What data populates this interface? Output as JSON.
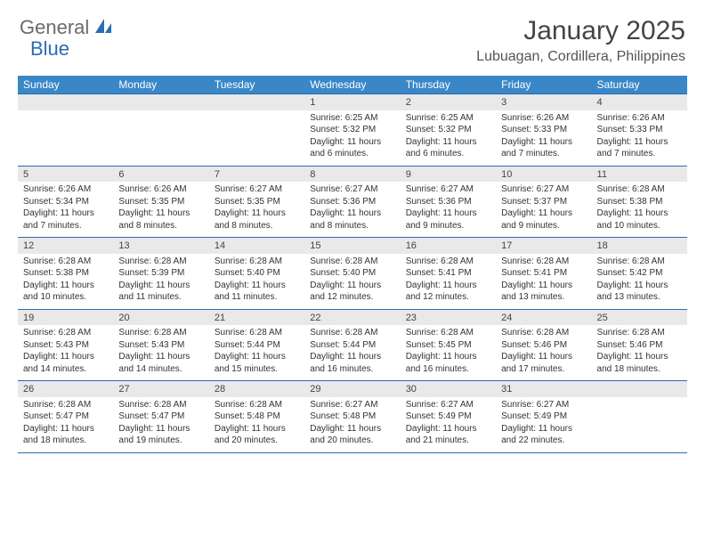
{
  "logo": {
    "text1": "General",
    "text2": "Blue",
    "icon_color": "#2a6db3"
  },
  "title": "January 2025",
  "location": "Lubuagan, Cordillera, Philippines",
  "colors": {
    "header_bg": "#3a87c8",
    "header_text": "#ffffff",
    "daynum_bg": "#e9e9e9",
    "rule": "#2a6db3"
  },
  "weekdays": [
    "Sunday",
    "Monday",
    "Tuesday",
    "Wednesday",
    "Thursday",
    "Friday",
    "Saturday"
  ],
  "weeks": [
    [
      null,
      null,
      null,
      {
        "n": "1",
        "sr": "6:25 AM",
        "ss": "5:32 PM",
        "dh": "11",
        "dm": "6"
      },
      {
        "n": "2",
        "sr": "6:25 AM",
        "ss": "5:32 PM",
        "dh": "11",
        "dm": "6"
      },
      {
        "n": "3",
        "sr": "6:26 AM",
        "ss": "5:33 PM",
        "dh": "11",
        "dm": "7"
      },
      {
        "n": "4",
        "sr": "6:26 AM",
        "ss": "5:33 PM",
        "dh": "11",
        "dm": "7"
      }
    ],
    [
      {
        "n": "5",
        "sr": "6:26 AM",
        "ss": "5:34 PM",
        "dh": "11",
        "dm": "7"
      },
      {
        "n": "6",
        "sr": "6:26 AM",
        "ss": "5:35 PM",
        "dh": "11",
        "dm": "8"
      },
      {
        "n": "7",
        "sr": "6:27 AM",
        "ss": "5:35 PM",
        "dh": "11",
        "dm": "8"
      },
      {
        "n": "8",
        "sr": "6:27 AM",
        "ss": "5:36 PM",
        "dh": "11",
        "dm": "8"
      },
      {
        "n": "9",
        "sr": "6:27 AM",
        "ss": "5:36 PM",
        "dh": "11",
        "dm": "9"
      },
      {
        "n": "10",
        "sr": "6:27 AM",
        "ss": "5:37 PM",
        "dh": "11",
        "dm": "9"
      },
      {
        "n": "11",
        "sr": "6:28 AM",
        "ss": "5:38 PM",
        "dh": "11",
        "dm": "10"
      }
    ],
    [
      {
        "n": "12",
        "sr": "6:28 AM",
        "ss": "5:38 PM",
        "dh": "11",
        "dm": "10"
      },
      {
        "n": "13",
        "sr": "6:28 AM",
        "ss": "5:39 PM",
        "dh": "11",
        "dm": "11"
      },
      {
        "n": "14",
        "sr": "6:28 AM",
        "ss": "5:40 PM",
        "dh": "11",
        "dm": "11"
      },
      {
        "n": "15",
        "sr": "6:28 AM",
        "ss": "5:40 PM",
        "dh": "11",
        "dm": "12"
      },
      {
        "n": "16",
        "sr": "6:28 AM",
        "ss": "5:41 PM",
        "dh": "11",
        "dm": "12"
      },
      {
        "n": "17",
        "sr": "6:28 AM",
        "ss": "5:41 PM",
        "dh": "11",
        "dm": "13"
      },
      {
        "n": "18",
        "sr": "6:28 AM",
        "ss": "5:42 PM",
        "dh": "11",
        "dm": "13"
      }
    ],
    [
      {
        "n": "19",
        "sr": "6:28 AM",
        "ss": "5:43 PM",
        "dh": "11",
        "dm": "14"
      },
      {
        "n": "20",
        "sr": "6:28 AM",
        "ss": "5:43 PM",
        "dh": "11",
        "dm": "14"
      },
      {
        "n": "21",
        "sr": "6:28 AM",
        "ss": "5:44 PM",
        "dh": "11",
        "dm": "15"
      },
      {
        "n": "22",
        "sr": "6:28 AM",
        "ss": "5:44 PM",
        "dh": "11",
        "dm": "16"
      },
      {
        "n": "23",
        "sr": "6:28 AM",
        "ss": "5:45 PM",
        "dh": "11",
        "dm": "16"
      },
      {
        "n": "24",
        "sr": "6:28 AM",
        "ss": "5:46 PM",
        "dh": "11",
        "dm": "17"
      },
      {
        "n": "25",
        "sr": "6:28 AM",
        "ss": "5:46 PM",
        "dh": "11",
        "dm": "18"
      }
    ],
    [
      {
        "n": "26",
        "sr": "6:28 AM",
        "ss": "5:47 PM",
        "dh": "11",
        "dm": "18"
      },
      {
        "n": "27",
        "sr": "6:28 AM",
        "ss": "5:47 PM",
        "dh": "11",
        "dm": "19"
      },
      {
        "n": "28",
        "sr": "6:28 AM",
        "ss": "5:48 PM",
        "dh": "11",
        "dm": "20"
      },
      {
        "n": "29",
        "sr": "6:27 AM",
        "ss": "5:48 PM",
        "dh": "11",
        "dm": "20"
      },
      {
        "n": "30",
        "sr": "6:27 AM",
        "ss": "5:49 PM",
        "dh": "11",
        "dm": "21"
      },
      {
        "n": "31",
        "sr": "6:27 AM",
        "ss": "5:49 PM",
        "dh": "11",
        "dm": "22"
      },
      null
    ]
  ]
}
